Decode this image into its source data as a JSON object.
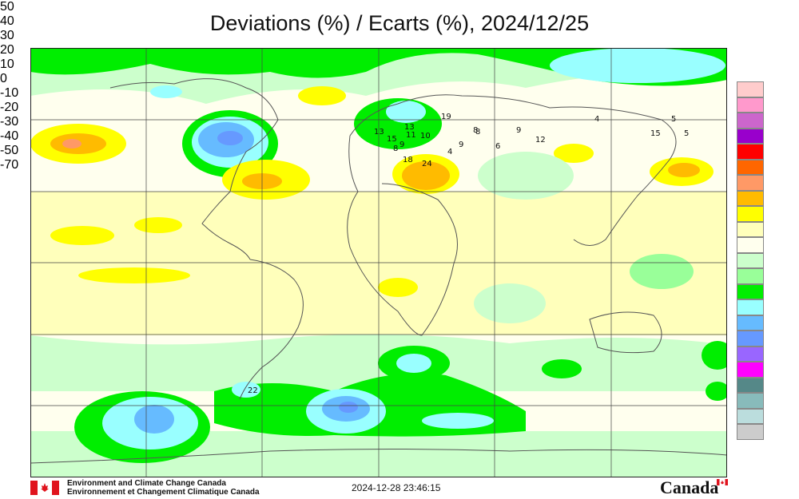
{
  "title": "Deviations (%) / Ecarts (%), 2024/12/25",
  "legend": {
    "colors": [
      "#ffcccc",
      "#ff99cc",
      "#cc66cc",
      "#9900cc",
      "#ff0000",
      "#ff6600",
      "#ff9966",
      "#ffbb00",
      "#ffff00",
      "#ffffbb",
      "#ffffee",
      "#ccffcc",
      "#99ff99",
      "#00ee00",
      "#99ffff",
      "#66bbff",
      "#6699ff",
      "#9966ff",
      "#ff00ff",
      "#558888",
      "#88bbbb",
      "#bbdddd",
      "#cccccc"
    ],
    "ticks": [
      "50",
      "40",
      "30",
      "20",
      "10",
      "0",
      "-10",
      "-20",
      "-30",
      "-40",
      "-50",
      "-70"
    ]
  },
  "stations": [
    {
      "label": "19"
    },
    {
      "label": "13"
    },
    {
      "label": "13"
    },
    {
      "label": "15"
    },
    {
      "label": "11"
    },
    {
      "label": "10"
    },
    {
      "label": "9"
    },
    {
      "label": "8"
    },
    {
      "label": "8"
    },
    {
      "label": "9"
    },
    {
      "label": "18"
    },
    {
      "label": "24"
    },
    {
      "label": "4"
    },
    {
      "label": "8"
    },
    {
      "label": "6"
    },
    {
      "label": "9"
    },
    {
      "label": "12"
    },
    {
      "label": "4"
    },
    {
      "label": "15"
    },
    {
      "label": "5"
    },
    {
      "label": "5"
    },
    {
      "label": "22"
    }
  ],
  "footer": {
    "org_en": "Environment and Climate Change Canada",
    "org_fr": "Environnement et Changement Climatique Canada",
    "timestamp": "2024-12-28 23:46:15",
    "wordmark": "Canada"
  }
}
